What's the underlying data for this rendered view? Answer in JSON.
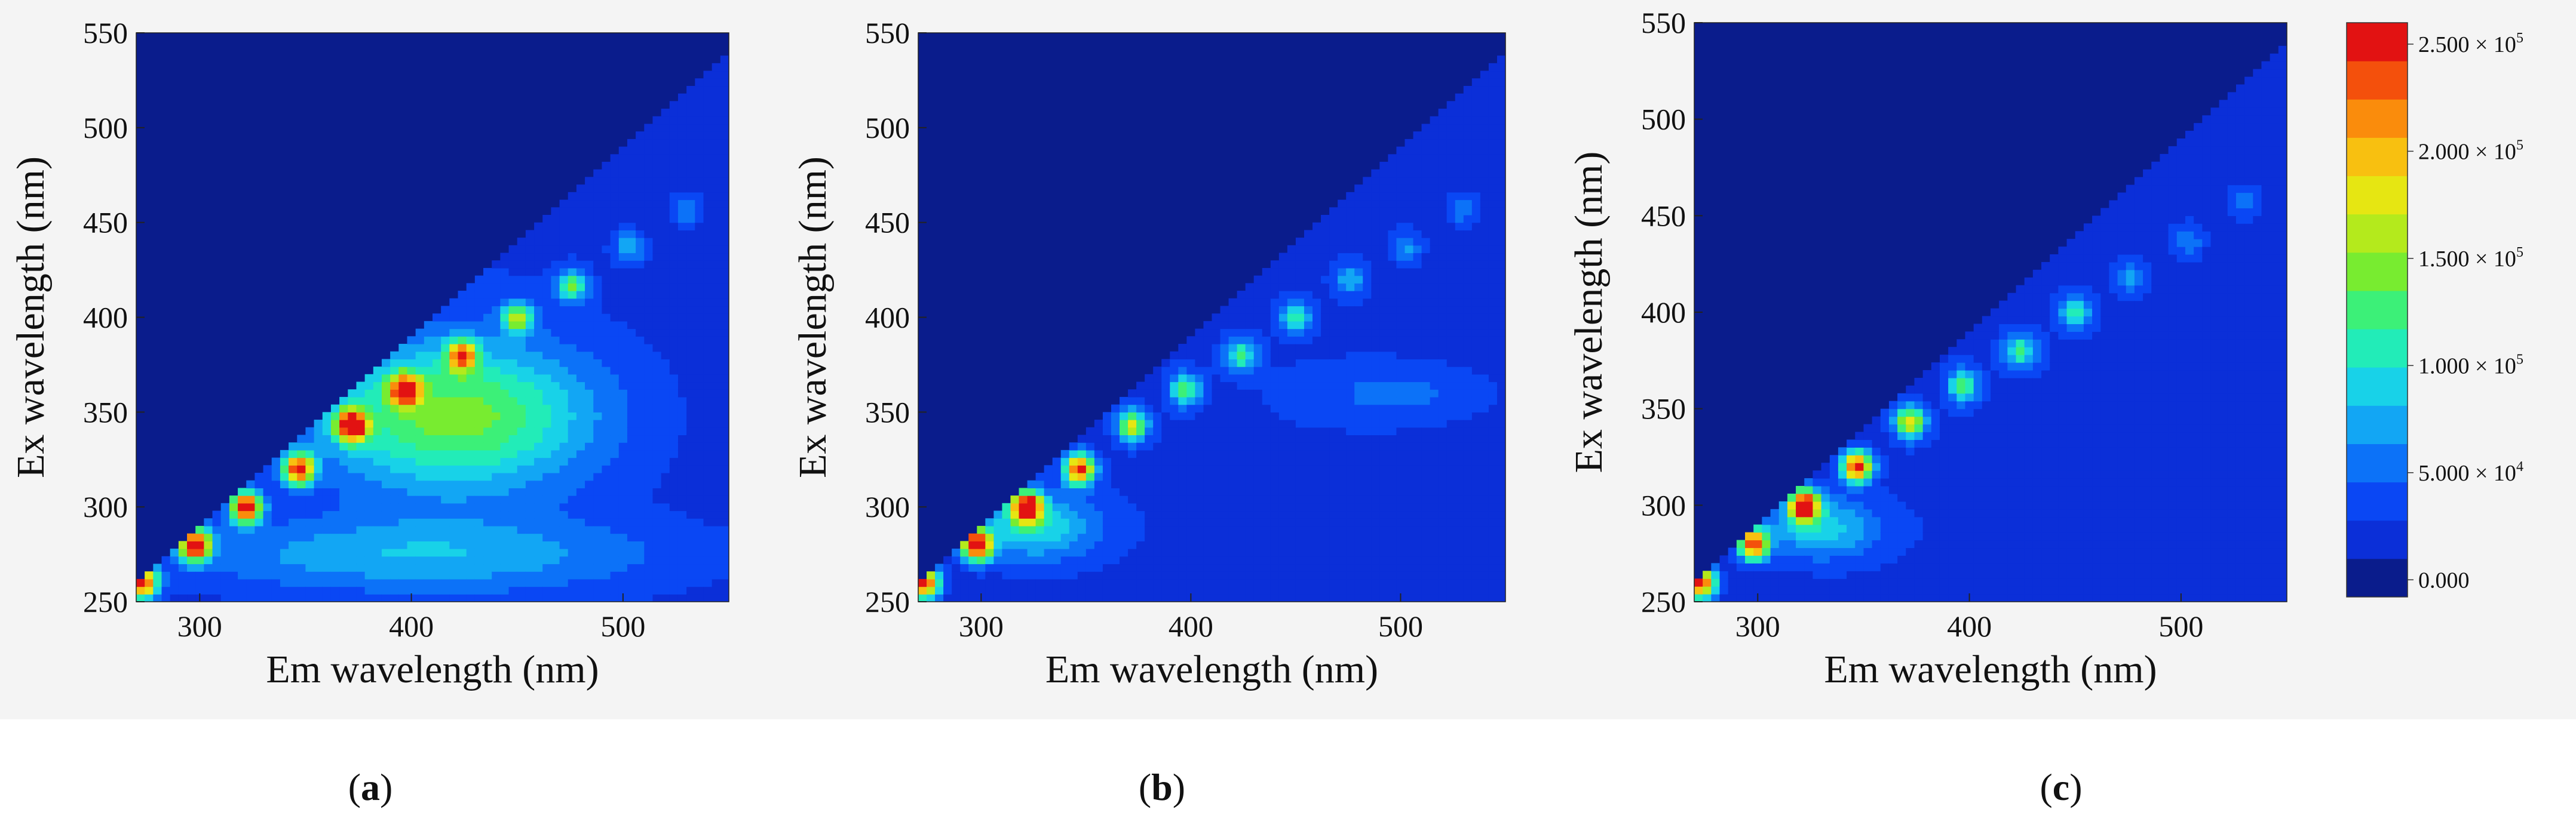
{
  "chart_data": [
    {
      "type": "heatmap",
      "panel": "a",
      "label_open": "(",
      "label_letter": "a",
      "label_close": ")",
      "xlabel": "Em wavelength (nm)",
      "ylabel": "Ex wavelength (nm)",
      "xlim": [
        270,
        550
      ],
      "ylim": [
        250,
        550
      ],
      "xticks": [
        "300",
        "400",
        "500"
      ],
      "yticks": [
        "250",
        "300",
        "350",
        "400",
        "450",
        "500",
        "550"
      ],
      "xtick_values": [
        300,
        400,
        500
      ],
      "ytick_values": [
        250,
        300,
        350,
        400,
        450,
        500,
        550
      ],
      "rayleigh_peaks": [
        {
          "em": 273,
          "ex": 260,
          "intensity": 230000
        },
        {
          "em": 298,
          "ex": 280,
          "intensity": 250000
        },
        {
          "em": 322,
          "ex": 300,
          "intensity": 250000
        },
        {
          "em": 347,
          "ex": 320,
          "intensity": 230000
        },
        {
          "em": 372,
          "ex": 343,
          "intensity": 250000
        },
        {
          "em": 397,
          "ex": 362,
          "intensity": 200000
        },
        {
          "em": 424,
          "ex": 380,
          "intensity": 175000
        },
        {
          "em": 450,
          "ex": 400,
          "intensity": 135000
        },
        {
          "em": 476,
          "ex": 417,
          "intensity": 110000
        },
        {
          "em": 503,
          "ex": 437,
          "intensity": 60000
        },
        {
          "em": 530,
          "ex": 457,
          "intensity": 45000
        }
      ],
      "broad_peaks": [
        {
          "em": 420,
          "ex": 348,
          "intensity": 120000,
          "width_em": 65,
          "width_ex": 38
        },
        {
          "em": 400,
          "ex": 275,
          "intensity": 55000,
          "width_em": 120,
          "width_ex": 20
        }
      ]
    },
    {
      "type": "heatmap",
      "panel": "b",
      "label_open": "(",
      "label_letter": "b",
      "label_close": ")",
      "xlabel": "Em wavelength (nm)",
      "ylabel": "Ex wavelength (nm)",
      "xlim": [
        270,
        550
      ],
      "ylim": [
        250,
        550
      ],
      "xticks": [
        "300",
        "400",
        "500"
      ],
      "yticks": [
        "250",
        "300",
        "350",
        "400",
        "450",
        "500",
        "550"
      ],
      "xtick_values": [
        300,
        400,
        500
      ],
      "ytick_values": [
        250,
        300,
        350,
        400,
        450,
        500,
        550
      ],
      "rayleigh_peaks": [
        {
          "em": 273,
          "ex": 260,
          "intensity": 230000
        },
        {
          "em": 298,
          "ex": 280,
          "intensity": 250000
        },
        {
          "em": 322,
          "ex": 300,
          "intensity": 250000
        },
        {
          "em": 347,
          "ex": 320,
          "intensity": 230000
        },
        {
          "em": 372,
          "ex": 343,
          "intensity": 150000
        },
        {
          "em": 397,
          "ex": 362,
          "intensity": 110000
        },
        {
          "em": 424,
          "ex": 380,
          "intensity": 95000
        },
        {
          "em": 450,
          "ex": 400,
          "intensity": 80000
        },
        {
          "em": 476,
          "ex": 420,
          "intensity": 55000
        },
        {
          "em": 503,
          "ex": 437,
          "intensity": 45000
        },
        {
          "em": 530,
          "ex": 457,
          "intensity": 40000
        }
      ],
      "broad_peaks": [
        {
          "em": 325,
          "ex": 290,
          "intensity": 80000,
          "width_em": 30,
          "width_ex": 18
        },
        {
          "em": 500,
          "ex": 360,
          "intensity": 30000,
          "width_em": 40,
          "width_ex": 15
        }
      ]
    },
    {
      "type": "heatmap",
      "panel": "c",
      "label_open": "(",
      "label_letter": "c",
      "label_close": ")",
      "xlabel": "Em wavelength (nm)",
      "ylabel": "Ex wavelength (nm)",
      "xlim": [
        270,
        550
      ],
      "ylim": [
        250,
        550
      ],
      "xticks": [
        "300",
        "400",
        "500"
      ],
      "yticks": [
        "250",
        "300",
        "350",
        "400",
        "450",
        "500",
        "550"
      ],
      "xtick_values": [
        300,
        400,
        500
      ],
      "ytick_values": [
        250,
        300,
        350,
        400,
        450,
        500,
        550
      ],
      "rayleigh_peaks": [
        {
          "em": 273,
          "ex": 260,
          "intensity": 230000
        },
        {
          "em": 298,
          "ex": 280,
          "intensity": 220000
        },
        {
          "em": 322,
          "ex": 300,
          "intensity": 250000
        },
        {
          "em": 347,
          "ex": 320,
          "intensity": 230000
        },
        {
          "em": 372,
          "ex": 343,
          "intensity": 160000
        },
        {
          "em": 397,
          "ex": 362,
          "intensity": 110000
        },
        {
          "em": 424,
          "ex": 380,
          "intensity": 95000
        },
        {
          "em": 450,
          "ex": 400,
          "intensity": 85000
        },
        {
          "em": 476,
          "ex": 418,
          "intensity": 50000
        },
        {
          "em": 503,
          "ex": 437,
          "intensity": 40000
        },
        {
          "em": 530,
          "ex": 457,
          "intensity": 35000
        }
      ],
      "broad_peaks": [
        {
          "em": 330,
          "ex": 288,
          "intensity": 70000,
          "width_em": 28,
          "width_ex": 16
        }
      ]
    }
  ],
  "colorbar": {
    "range": [
      -8000,
      260000
    ],
    "tick_values": [
      0,
      50000,
      100000,
      150000,
      200000,
      250000
    ],
    "labels": [
      {
        "mantissa": "0.000",
        "exp": ""
      },
      {
        "mantissa": "5.000 × 10",
        "exp": "4"
      },
      {
        "mantissa": "1.000 × 10",
        "exp": "5"
      },
      {
        "mantissa": "1.500 × 10",
        "exp": "5"
      },
      {
        "mantissa": "2.000 × 10",
        "exp": "5"
      },
      {
        "mantissa": "2.500 × 10",
        "exp": "5"
      }
    ],
    "colors": [
      "#0a1c8c",
      "#0b2fd8",
      "#0a47f4",
      "#0c72f8",
      "#12a6f4",
      "#18d2e8",
      "#22ecb8",
      "#3cf078",
      "#78ec30",
      "#b4ea1c",
      "#e6e612",
      "#f8c010",
      "#fa8c0c",
      "#f4500c",
      "#e21212"
    ]
  }
}
